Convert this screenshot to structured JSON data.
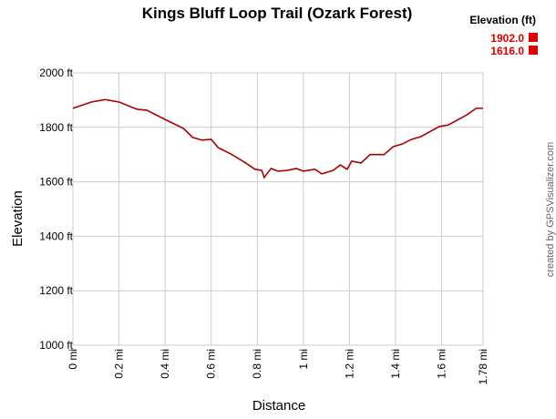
{
  "chart_data": {
    "type": "line",
    "title": "Kings Bluff Loop Trail (Ozark Forest)",
    "x_label": "Distance",
    "y_label": "Elevation",
    "credit": "created by GPSVisualizer.com",
    "legend": {
      "title": "Elevation (ft)",
      "items": [
        "1902.0",
        "1616.0"
      ],
      "color": "#dd0000"
    },
    "grid": true,
    "xlim": [
      0,
      1.78
    ],
    "ylim": [
      1000,
      2000
    ],
    "xticks": [
      {
        "value": 0,
        "label": "0 mi"
      },
      {
        "value": 0.2,
        "label": "0.2 mi"
      },
      {
        "value": 0.4,
        "label": "0.4 mi"
      },
      {
        "value": 0.6,
        "label": "0.6 mi"
      },
      {
        "value": 0.8,
        "label": "0.8 mi"
      },
      {
        "value": 1,
        "label": "1 mi"
      },
      {
        "value": 1.2,
        "label": "1.2 mi"
      },
      {
        "value": 1.4,
        "label": "1.4 mi"
      },
      {
        "value": 1.6,
        "label": "1.6 mi"
      },
      {
        "value": 1.78,
        "label": "1.78 mi"
      }
    ],
    "yticks": [
      {
        "value": 1000,
        "label": "1000 ft"
      },
      {
        "value": 1200,
        "label": "1200 ft"
      },
      {
        "value": 1400,
        "label": "1400 ft"
      },
      {
        "value": 1600,
        "label": "1600 ft"
      },
      {
        "value": 1800,
        "label": "1800 ft"
      },
      {
        "value": 2000,
        "label": "2000 ft"
      }
    ],
    "series": [
      {
        "name": "Elevation",
        "color": "#aa0000",
        "x": [
          0,
          0.08,
          0.14,
          0.2,
          0.28,
          0.32,
          0.4,
          0.48,
          0.52,
          0.56,
          0.6,
          0.63,
          0.69,
          0.75,
          0.79,
          0.82,
          0.83,
          0.86,
          0.89,
          0.93,
          0.97,
          1.0,
          1.05,
          1.08,
          1.13,
          1.16,
          1.19,
          1.21,
          1.25,
          1.29,
          1.35,
          1.39,
          1.43,
          1.47,
          1.51,
          1.59,
          1.63,
          1.71,
          1.75,
          1.78
        ],
        "values": [
          1870,
          1893,
          1902,
          1893,
          1866,
          1863,
          1829,
          1796,
          1763,
          1753,
          1756,
          1726,
          1700,
          1669,
          1646,
          1642,
          1616,
          1649,
          1639,
          1642,
          1649,
          1639,
          1646,
          1629,
          1642,
          1662,
          1646,
          1676,
          1669,
          1700,
          1700,
          1729,
          1739,
          1756,
          1766,
          1803,
          1809,
          1846,
          1870,
          1870
        ]
      }
    ]
  }
}
